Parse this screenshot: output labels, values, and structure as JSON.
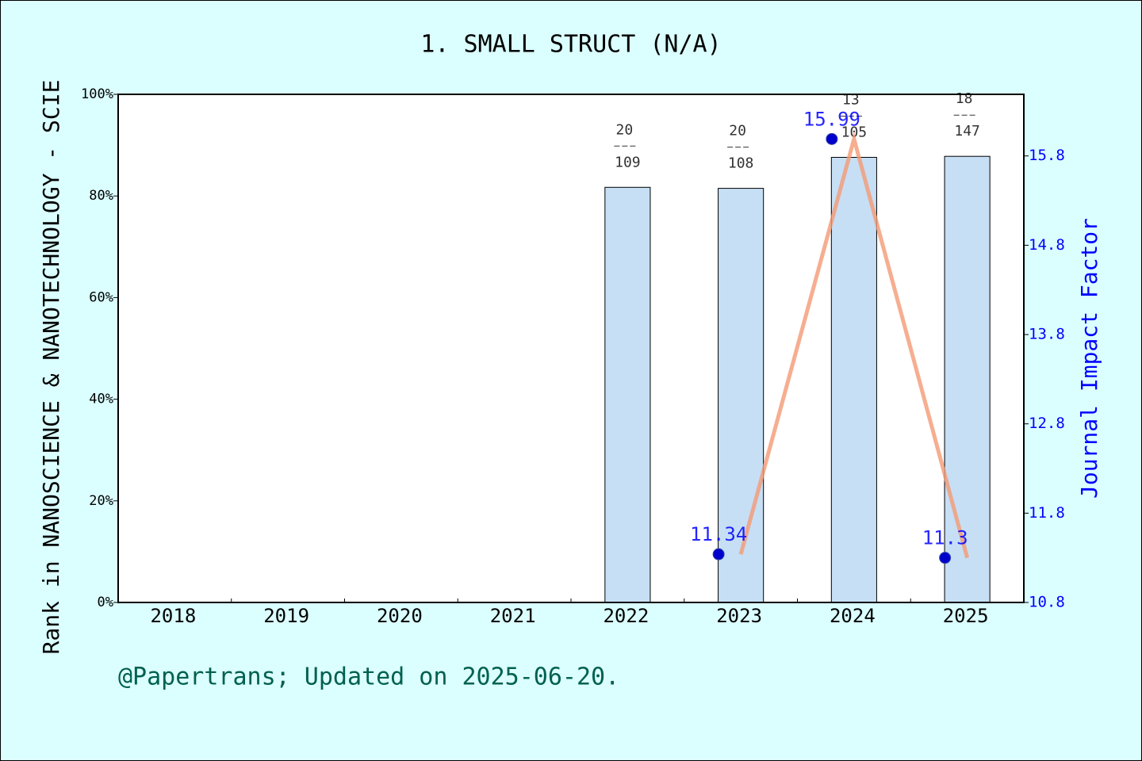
{
  "chart_data": {
    "type": "bar",
    "title": "1. SMALL STRUCT (N/A)",
    "y_label": "Rank in NANOSCIENCE & NANOTECHNOLOGY - SCIE",
    "y2_label": "Journal Impact Factor",
    "footer": "@Papertrans; Updated on 2025-06-20.",
    "categories": [
      "2018",
      "2019",
      "2020",
      "2021",
      "2022",
      "2023",
      "2024",
      "2025"
    ],
    "series": [
      {
        "type": "bar",
        "color": "#c6dff5",
        "values": [
          null,
          null,
          null,
          null,
          81.7,
          81.5,
          87.6,
          87.8
        ],
        "ranks": [
          null,
          null,
          null,
          null,
          20,
          20,
          13,
          18
        ],
        "totals": [
          null,
          null,
          null,
          null,
          109,
          108,
          105,
          147
        ]
      },
      {
        "type": "line",
        "axis": "y2",
        "color": "#f49a74",
        "marker_color": "#0000cc",
        "values": [
          null,
          null,
          null,
          null,
          null,
          11.34,
          15.99,
          11.3
        ]
      }
    ],
    "ylim": [
      0,
      100
    ],
    "yticks": [
      {
        "value": 0,
        "label": "0%"
      },
      {
        "value": 20,
        "label": "20%"
      },
      {
        "value": 40,
        "label": "40%"
      },
      {
        "value": 60,
        "label": "60%"
      },
      {
        "value": 80,
        "label": "80%"
      },
      {
        "value": 100,
        "label": "100%"
      }
    ],
    "y2lim": [
      10.8,
      16.49
    ],
    "y2ticks": [
      10.8,
      11.8,
      12.8,
      13.8,
      14.8,
      15.8
    ]
  }
}
